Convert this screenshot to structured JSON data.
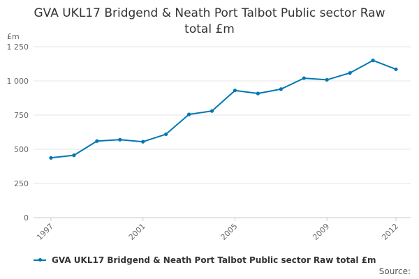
{
  "chart_data": {
    "type": "line",
    "title_lines": [
      "GVA UKL17 Bridgend & Neath Port Talbot Public sector Raw",
      "total £m"
    ],
    "y_unit": "£m",
    "x": [
      1997,
      1998,
      1999,
      2000,
      2001,
      2002,
      2003,
      2004,
      2005,
      2006,
      2007,
      2008,
      2009,
      2010,
      2011,
      2012
    ],
    "series": [
      {
        "name": "GVA UKL17 Bridgend & Neath Port Talbot Public sector Raw total £m",
        "color": "#0077b3",
        "values": [
          437,
          456,
          560,
          570,
          555,
          610,
          755,
          780,
          930,
          908,
          940,
          1020,
          1008,
          1058,
          1150,
          1085
        ]
      }
    ],
    "ylim": [
      0,
      1250
    ],
    "yticks": [
      0,
      250,
      500,
      750,
      1000,
      1250
    ],
    "ytick_labels": [
      "0",
      "250",
      "500",
      "750",
      "1 000",
      "1 250"
    ],
    "xticks": [
      1997,
      2001,
      2005,
      2009,
      2012
    ],
    "grid": true,
    "legend_position": "bottom-left"
  },
  "footer": {
    "source_label": "Source:"
  }
}
